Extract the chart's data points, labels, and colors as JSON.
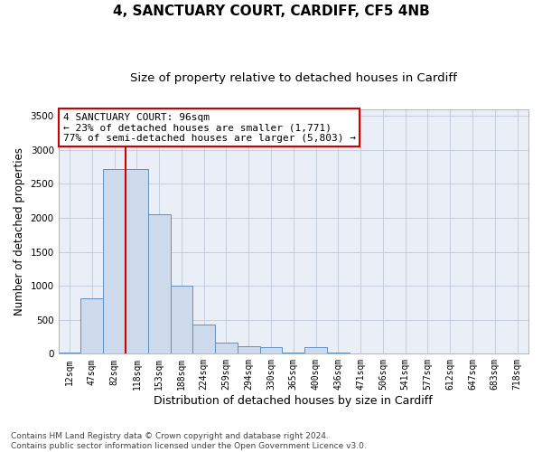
{
  "title1": "4, SANCTUARY COURT, CARDIFF, CF5 4NB",
  "title2": "Size of property relative to detached houses in Cardiff",
  "xlabel": "Distribution of detached houses by size in Cardiff",
  "ylabel": "Number of detached properties",
  "categories": [
    "12sqm",
    "47sqm",
    "82sqm",
    "118sqm",
    "153sqm",
    "188sqm",
    "224sqm",
    "259sqm",
    "294sqm",
    "330sqm",
    "365sqm",
    "400sqm",
    "436sqm",
    "471sqm",
    "506sqm",
    "541sqm",
    "577sqm",
    "612sqm",
    "647sqm",
    "683sqm",
    "718sqm"
  ],
  "values": [
    20,
    820,
    2720,
    2720,
    2050,
    1000,
    430,
    170,
    110,
    100,
    20,
    100,
    20,
    5,
    0,
    0,
    0,
    0,
    0,
    0,
    0
  ],
  "bar_color": "#ccdaeb",
  "bar_edge_color": "#6090be",
  "vline_color": "#cc0000",
  "vline_position": 2.5,
  "annotation_text": "4 SANCTUARY COURT: 96sqm\n← 23% of detached houses are smaller (1,771)\n77% of semi-detached houses are larger (5,803) →",
  "annotation_box_edgecolor": "#cc0000",
  "ylim": [
    0,
    3600
  ],
  "yticks": [
    0,
    500,
    1000,
    1500,
    2000,
    2500,
    3000,
    3500
  ],
  "grid_color": "#c5cede",
  "bg_color": "#eaeff7",
  "footer": "Contains HM Land Registry data © Crown copyright and database right 2024.\nContains public sector information licensed under the Open Government Licence v3.0.",
  "title1_fontsize": 11,
  "title2_fontsize": 9.5,
  "xlabel_fontsize": 9,
  "ylabel_fontsize": 8.5,
  "footer_fontsize": 6.5,
  "tick_fontsize": 7.5,
  "xtick_fontsize": 7.0
}
